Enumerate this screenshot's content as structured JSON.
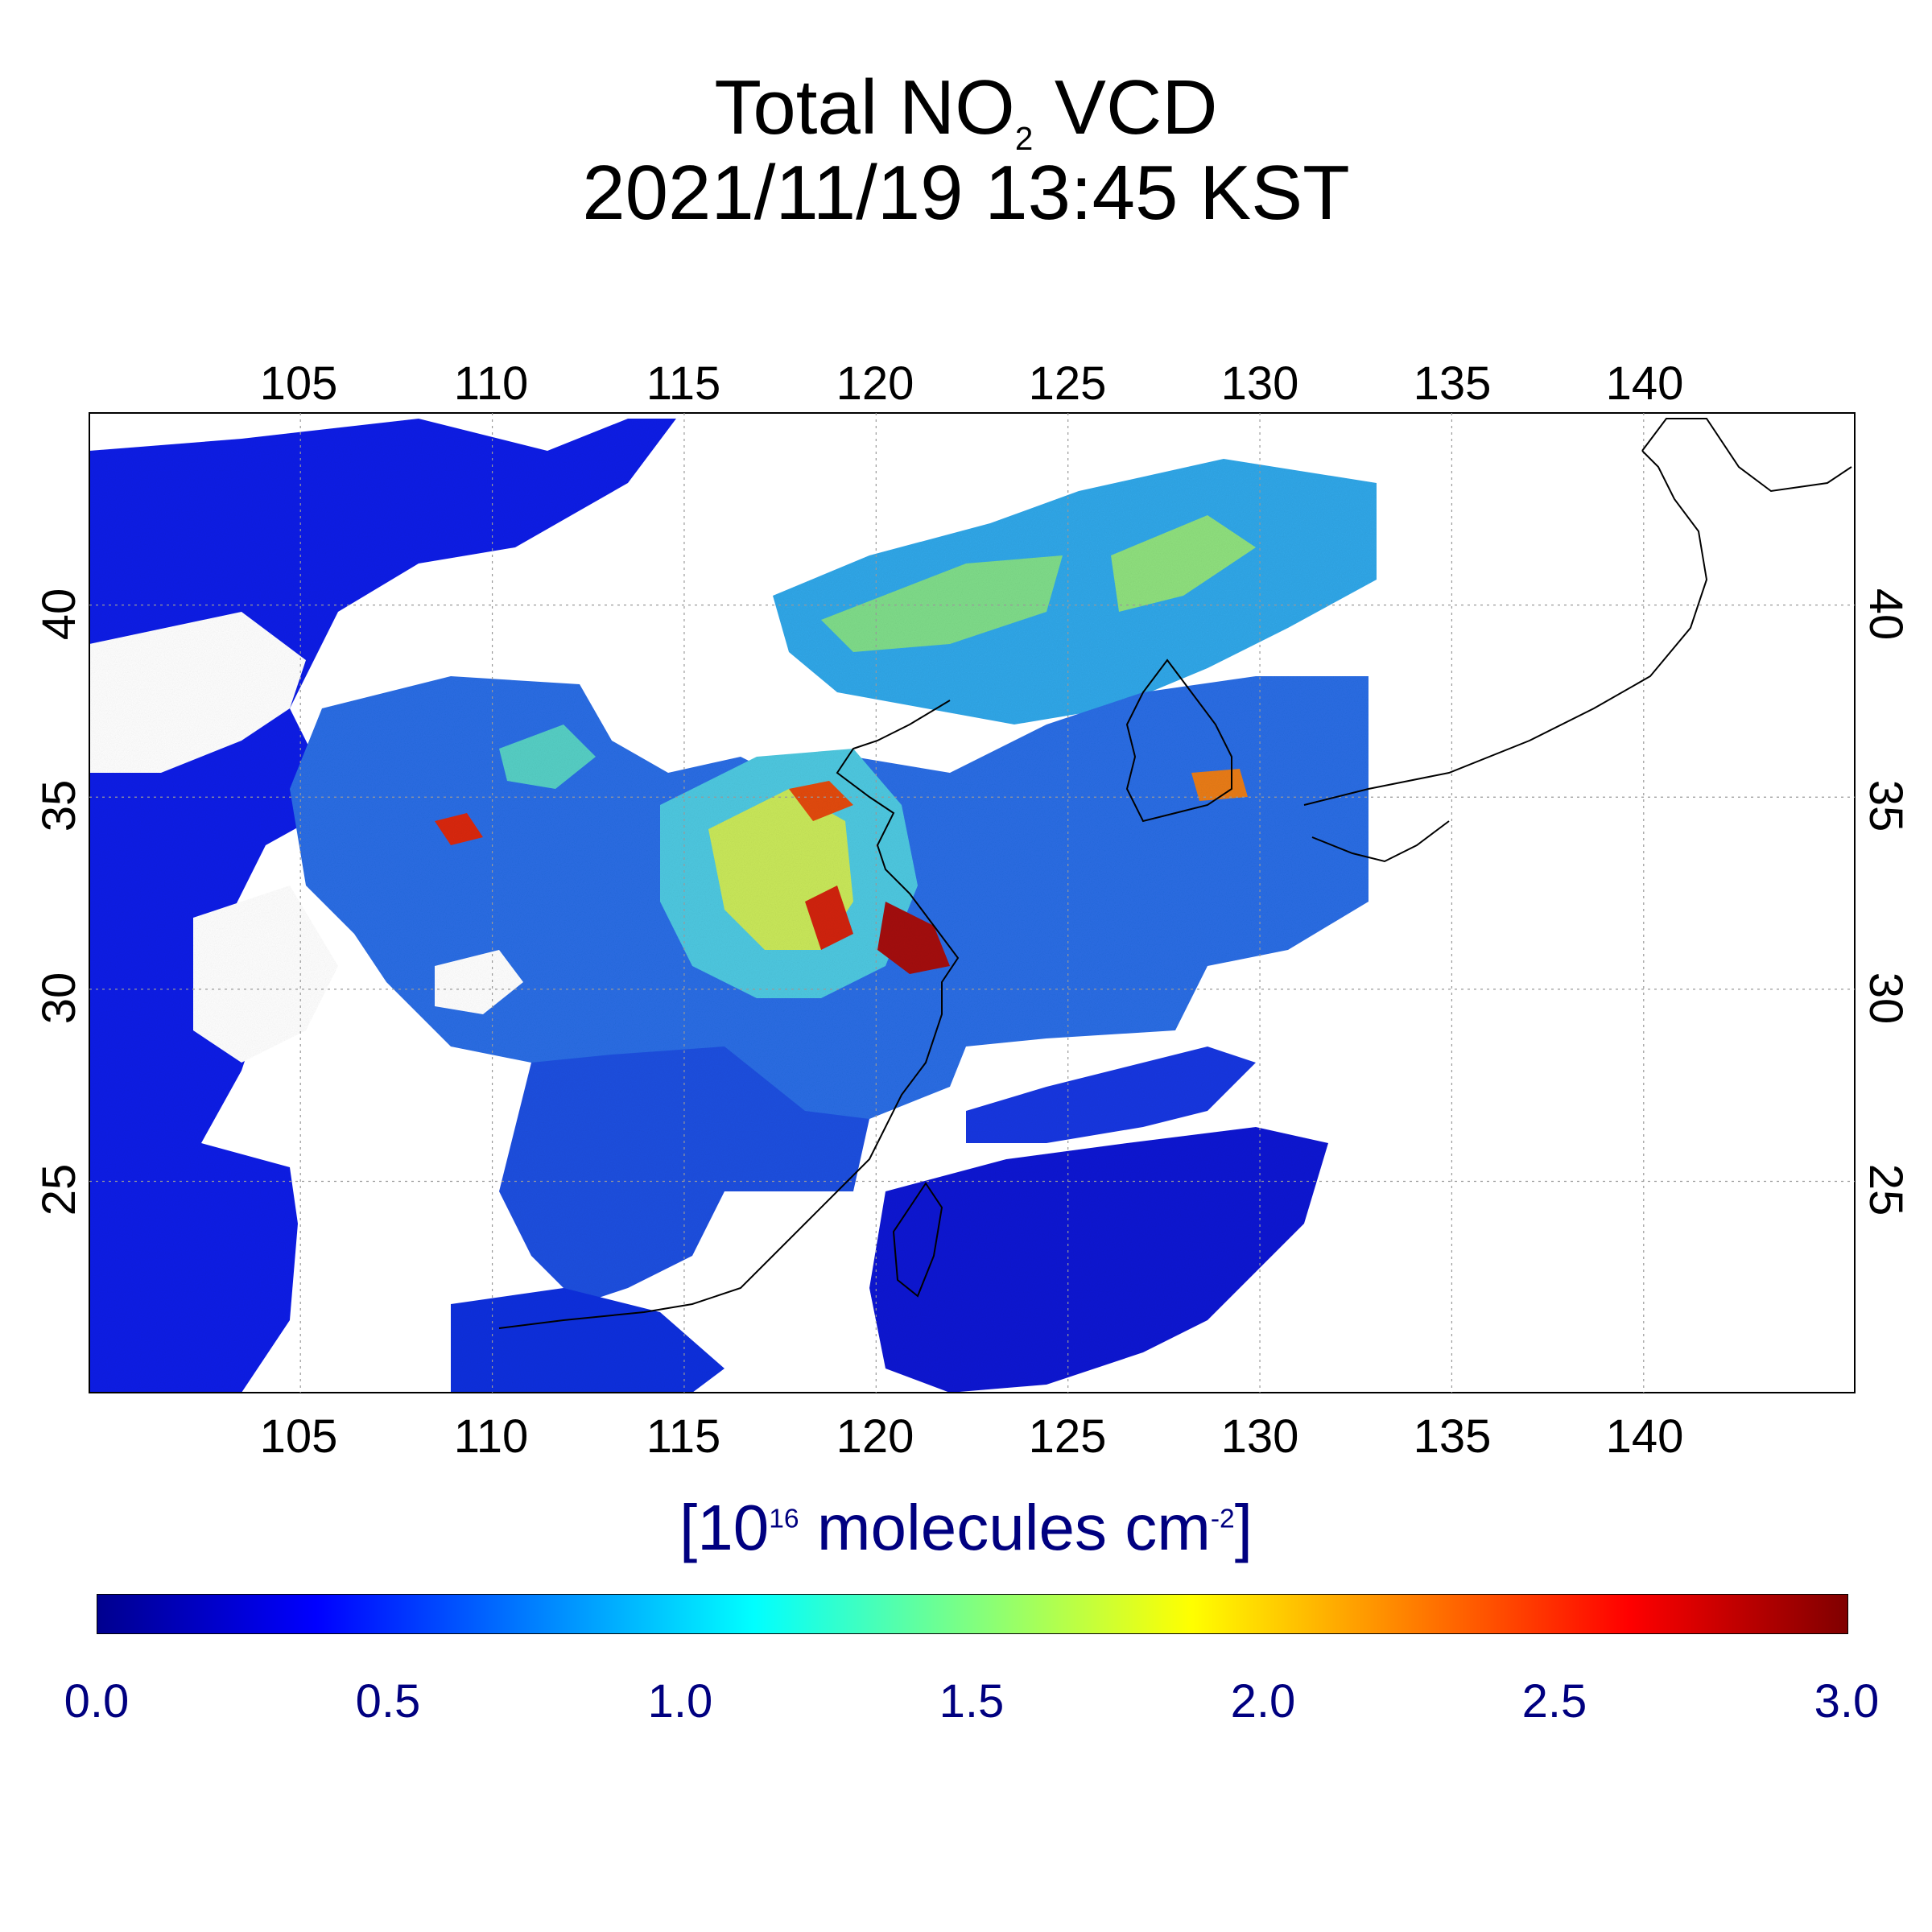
{
  "title": {
    "line1_main": "Total NO",
    "line1_sub": "2",
    "line1_end": " VCD",
    "line2": "2021/11/19 13:45 KST"
  },
  "map": {
    "lon_ticks": [
      "105",
      "110",
      "115",
      "120",
      "125",
      "130",
      "135",
      "140"
    ],
    "lat_ticks": [
      "25",
      "30",
      "35",
      "40"
    ],
    "lon_range": [
      99.5,
      145.5
    ],
    "lat_range": [
      19.5,
      45.0
    ]
  },
  "colorbar": {
    "unit_prefix": "[10",
    "unit_exp": "16",
    "unit_mid": " molecules cm",
    "unit_exp2": "-2",
    "unit_end": "]",
    "ticks": [
      "0.0",
      "0.5",
      "1.0",
      "1.5",
      "2.0",
      "2.5",
      "3.0"
    ],
    "range": [
      0.0,
      3.0
    ],
    "colors": [
      "#00008f",
      "#0000ff",
      "#0080ff",
      "#00ffff",
      "#80ff80",
      "#ffff00",
      "#ff8000",
      "#ff0000",
      "#800000"
    ]
  }
}
